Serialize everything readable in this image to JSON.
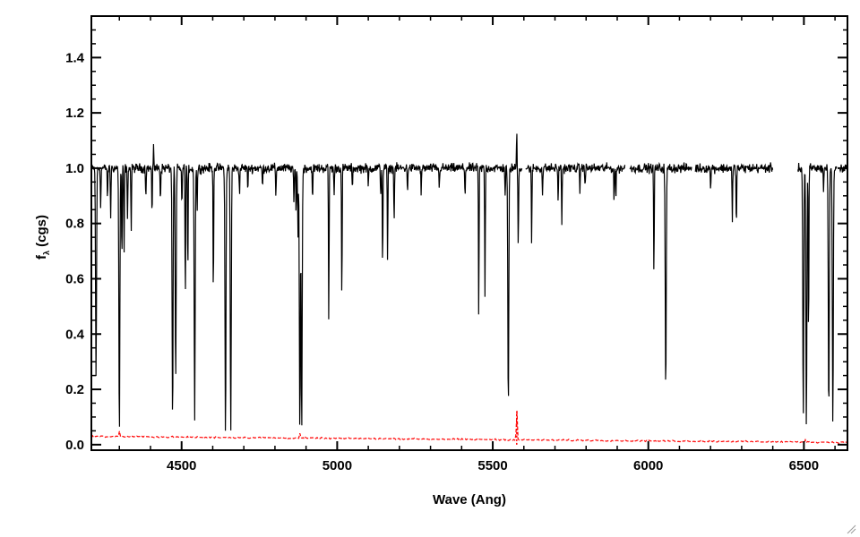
{
  "chart_data": {
    "type": "line",
    "xlabel": "Wave (Ang)",
    "ylabel_main": "f",
    "ylabel_sub": "λ",
    "ylabel_unit": "(cgs)",
    "xlim": [
      4210,
      6640
    ],
    "ylim": [
      -0.02,
      1.55
    ],
    "x_ticks": [
      4500,
      5000,
      5500,
      6000,
      6500
    ],
    "y_ticks": [
      0.0,
      0.2,
      0.4,
      0.6,
      0.8,
      1.0,
      1.2,
      1.4
    ],
    "x_tick_labels": [
      "4500",
      "5000",
      "5500",
      "6000",
      "6500"
    ],
    "y_tick_labels": [
      "0.0",
      "0.2",
      "0.4",
      "0.6",
      "0.8",
      "1.0",
      "1.2",
      "1.4"
    ],
    "grid": false,
    "series": [
      {
        "color": "#000000",
        "continuum": 1.0,
        "noise": 0.025,
        "x_range": [
          4210,
          6640
        ],
        "gaps": [
          [
            5595,
            5605
          ],
          [
            5925,
            5940
          ],
          [
            6140,
            6150
          ],
          [
            6400,
            6480
          ],
          [
            6605,
            6615
          ]
        ],
        "lines": [
          {
            "x": 4225,
            "depth": 0.75
          },
          {
            "x": 4240,
            "depth": 0.15
          },
          {
            "x": 4262,
            "depth": 0.12
          },
          {
            "x": 4272,
            "depth": 0.18
          },
          {
            "x": 4300,
            "depth": 0.97
          },
          {
            "x": 4308,
            "depth": 0.34
          },
          {
            "x": 4315,
            "depth": 0.32
          },
          {
            "x": 4326,
            "depth": 0.2
          },
          {
            "x": 4338,
            "depth": 0.23
          },
          {
            "x": 4385,
            "depth": 0.1
          },
          {
            "x": 4405,
            "depth": 0.18
          },
          {
            "x": 4432,
            "depth": 0.12
          },
          {
            "x": 4471,
            "depth": 0.92
          },
          {
            "x": 4481,
            "depth": 0.77
          },
          {
            "x": 4501,
            "depth": 0.15
          },
          {
            "x": 4512,
            "depth": 0.48
          },
          {
            "x": 4520,
            "depth": 0.4
          },
          {
            "x": 4542,
            "depth": 0.9
          },
          {
            "x": 4550,
            "depth": 0.15
          },
          {
            "x": 4602,
            "depth": 0.46
          },
          {
            "x": 4641,
            "depth": 0.98
          },
          {
            "x": 4658,
            "depth": 0.96
          },
          {
            "x": 4686,
            "depth": 0.1
          },
          {
            "x": 4713,
            "depth": 0.08
          },
          {
            "x": 4760,
            "depth": 0.07
          },
          {
            "x": 4803,
            "depth": 0.1
          },
          {
            "x": 4861,
            "depth": 0.15
          },
          {
            "x": 4868,
            "depth": 0.18
          },
          {
            "x": 4874,
            "depth": 0.25
          },
          {
            "x": 4880,
            "depth": 0.97
          },
          {
            "x": 4886,
            "depth": 0.96
          },
          {
            "x": 4921,
            "depth": 0.12
          },
          {
            "x": 4973,
            "depth": 0.56
          },
          {
            "x": 4990,
            "depth": 0.1
          },
          {
            "x": 5015,
            "depth": 0.49
          },
          {
            "x": 5049,
            "depth": 0.08
          },
          {
            "x": 5100,
            "depth": 0.07
          },
          {
            "x": 5140,
            "depth": 0.1
          },
          {
            "x": 5146,
            "depth": 0.36
          },
          {
            "x": 5162,
            "depth": 0.34
          },
          {
            "x": 5183,
            "depth": 0.2
          },
          {
            "x": 5226,
            "depth": 0.08
          },
          {
            "x": 5270,
            "depth": 0.1
          },
          {
            "x": 5328,
            "depth": 0.08
          },
          {
            "x": 5411,
            "depth": 0.1
          },
          {
            "x": 5455,
            "depth": 0.55
          },
          {
            "x": 5475,
            "depth": 0.47
          },
          {
            "x": 5540,
            "depth": 0.1
          },
          {
            "x": 5550,
            "depth": 0.88
          },
          {
            "x": 5582,
            "depth": 0.3
          },
          {
            "x": 5625,
            "depth": 0.28
          },
          {
            "x": 5660,
            "depth": 0.1
          },
          {
            "x": 5710,
            "depth": 0.12
          },
          {
            "x": 5722,
            "depth": 0.2
          },
          {
            "x": 5780,
            "depth": 0.08
          },
          {
            "x": 5797,
            "depth": 0.06
          },
          {
            "x": 5890,
            "depth": 0.12
          },
          {
            "x": 5896,
            "depth": 0.1
          },
          {
            "x": 6018,
            "depth": 0.4
          },
          {
            "x": 6056,
            "depth": 0.82
          },
          {
            "x": 6200,
            "depth": 0.08
          },
          {
            "x": 6270,
            "depth": 0.2
          },
          {
            "x": 6283,
            "depth": 0.22
          },
          {
            "x": 6498,
            "depth": 0.9
          },
          {
            "x": 6508,
            "depth": 0.94
          },
          {
            "x": 6515,
            "depth": 0.66
          },
          {
            "x": 6563,
            "depth": 0.08
          },
          {
            "x": 6580,
            "depth": 0.9
          },
          {
            "x": 6593,
            "depth": 0.93
          },
          {
            "x": 6613,
            "depth": 0.3
          }
        ],
        "spikes": [
          {
            "x": 4410,
            "height": 0.1
          },
          {
            "x": 5577,
            "height": 0.14
          }
        ]
      },
      {
        "color": "#ff0000",
        "style": "error",
        "start": 0.03,
        "end": 0.008,
        "noise": 0.004,
        "x_range": [
          4210,
          6640
        ],
        "spikes": [
          {
            "x": 5577,
            "height": 0.12
          },
          {
            "x": 4300,
            "height": 0.02
          },
          {
            "x": 4880,
            "height": 0.015
          },
          {
            "x": 6505,
            "height": 0.01
          }
        ]
      }
    ]
  },
  "window": {
    "grip_icon": "resize-grip-icon"
  }
}
